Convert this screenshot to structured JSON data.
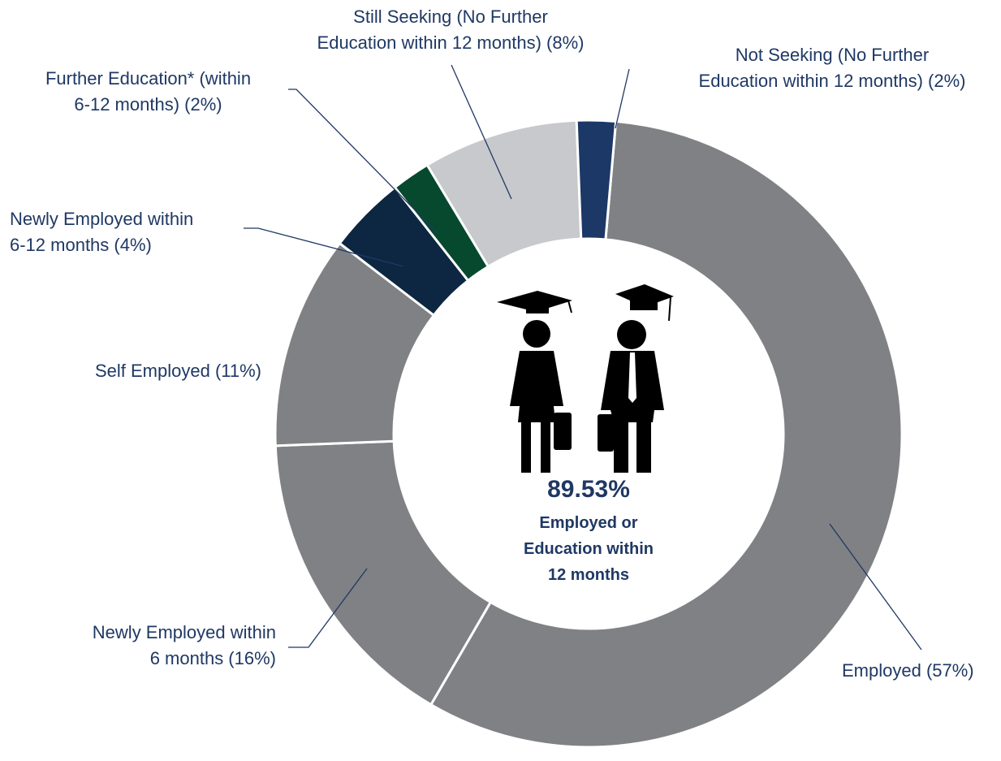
{
  "chart_data": {
    "type": "donut",
    "categories": [
      "Employed (57%)",
      "Newly Employed within\n6 months (16%)",
      "Self Employed (11%)",
      "Newly Employed within\n6-12 months (4%)",
      "Further Education*  (within\n6-12 months) (2%)",
      "Still Seeking (No Further\nEducation within 12 months) (8%)",
      "Not Seeking (No Further\nEducation within 12 months) (2%)"
    ],
    "values": [
      57,
      16,
      11,
      4,
      2,
      8,
      2
    ],
    "colors": [
      "#808184",
      "#808184",
      "#808184",
      "#0d2742",
      "#06492f",
      "#c8c9cc",
      "#1b3866"
    ],
    "center_value": "89.53%",
    "center_label": "Employed or\nEducation within\n12 months"
  }
}
